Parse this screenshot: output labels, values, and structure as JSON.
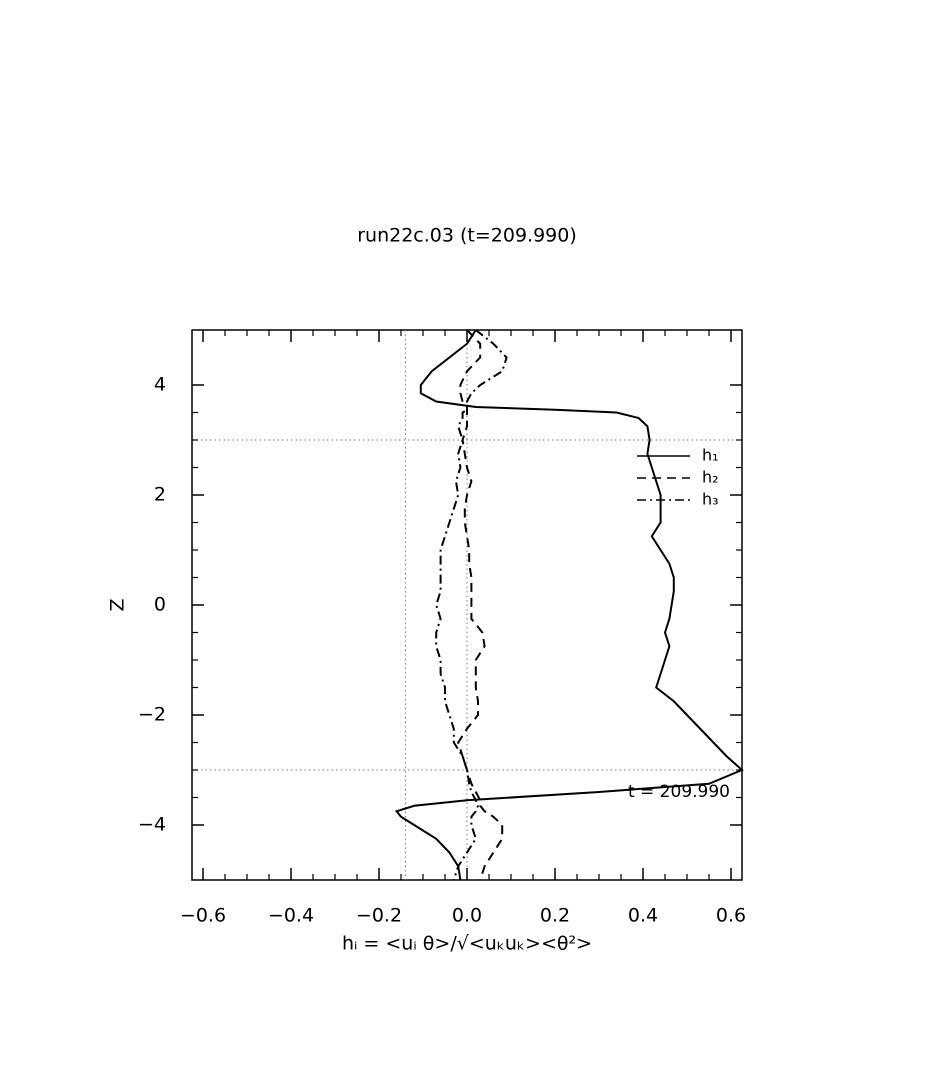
{
  "chart_data": {
    "type": "line",
    "title": "run22c.03 (t=209.990)",
    "xlabel": "hᵢ = <uᵢ θ>/√<uₖuₖ><θ²>",
    "ylabel": "Z",
    "annotation": "t = 209.990",
    "xlim": [
      -0.625,
      0.625
    ],
    "ylim": [
      -5,
      5
    ],
    "xticks": [
      {
        "value": -0.6,
        "label": "−0.6"
      },
      {
        "value": -0.4,
        "label": "−0.4"
      },
      {
        "value": -0.2,
        "label": "−0.2"
      },
      {
        "value": 0,
        "label": "0.0"
      },
      0.2,
      0.4,
      0.6
    ],
    "yticks": [
      {
        "value": -4,
        "label": "−4"
      },
      {
        "value": -2,
        "label": "−2"
      },
      0,
      2,
      4
    ],
    "reference_lines": {
      "x": [
        -0.14,
        0
      ],
      "y": [
        3,
        -3
      ]
    },
    "z": [
      5,
      4.75,
      4.5,
      4.25,
      4,
      3.85,
      3.7,
      3.6,
      3.55,
      3.5,
      3.4,
      3.25,
      3,
      2.75,
      2.5,
      2.25,
      2,
      1.75,
      1.5,
      1.25,
      1,
      0.75,
      0.5,
      0.25,
      0,
      -0.25,
      -0.5,
      -0.75,
      -1,
      -1.25,
      -1.5,
      -1.75,
      -2,
      -2.25,
      -2.5,
      -2.75,
      -3,
      -3.25,
      -3.4,
      -3.55,
      -3.65,
      -3.75,
      -3.85,
      -4,
      -4.25,
      -4.5,
      -4.75,
      -5
    ],
    "series": [
      {
        "name": "h₁",
        "color": "#000000",
        "dash": "solid",
        "values": [
          0.02,
          0,
          -0.04,
          -0.08,
          -0.105,
          -0.105,
          -0.07,
          0.02,
          0.2,
          0.34,
          0.39,
          0.41,
          0.415,
          0.41,
          0.42,
          0.43,
          0.44,
          0.44,
          0.44,
          0.42,
          0.44,
          0.46,
          0.47,
          0.47,
          0.465,
          0.46,
          0.45,
          0.46,
          0.45,
          0.44,
          0.43,
          0.47,
          0.5,
          0.53,
          0.56,
          0.59,
          0.625,
          0.55,
          0.3,
          0,
          -0.12,
          -0.16,
          -0.15,
          -0.12,
          -0.07,
          -0.04,
          -0.02,
          -0.015
        ]
      },
      {
        "name": "h₂",
        "color": "#000000",
        "dash": "dashed",
        "values": [
          0,
          0.03,
          0.03,
          0,
          -0.015,
          -0.015,
          -0.01,
          0,
          0,
          0,
          0,
          0,
          -0.01,
          -0.005,
          0,
          0.01,
          0,
          -0.005,
          -0.005,
          0,
          0.005,
          0.005,
          0.01,
          0.01,
          0.01,
          0.01,
          0.035,
          0.04,
          0.02,
          0.02,
          0.02,
          0.025,
          0.025,
          0,
          -0.02,
          -0.01,
          0,
          0.01,
          0.02,
          0.03,
          0.03,
          0.04,
          0.06,
          0.08,
          0.08,
          0.06,
          0.04,
          0.03
        ]
      },
      {
        "name": "h₃",
        "color": "#000000",
        "dash": "dashdot",
        "values": [
          0.02,
          0.06,
          0.09,
          0.08,
          0.03,
          0.01,
          0,
          0,
          0,
          -0.01,
          -0.01,
          -0.02,
          -0.01,
          -0.02,
          -0.015,
          -0.025,
          -0.02,
          -0.03,
          -0.04,
          -0.05,
          -0.06,
          -0.06,
          -0.06,
          -0.06,
          -0.07,
          -0.06,
          -0.07,
          -0.07,
          -0.06,
          -0.06,
          -0.05,
          -0.05,
          -0.04,
          -0.03,
          -0.03,
          -0.01,
          0,
          0.005,
          0.01,
          0.02,
          0.025,
          0.02,
          0.01,
          0.01,
          0.02,
          0,
          -0.02,
          -0.03
        ]
      }
    ]
  }
}
